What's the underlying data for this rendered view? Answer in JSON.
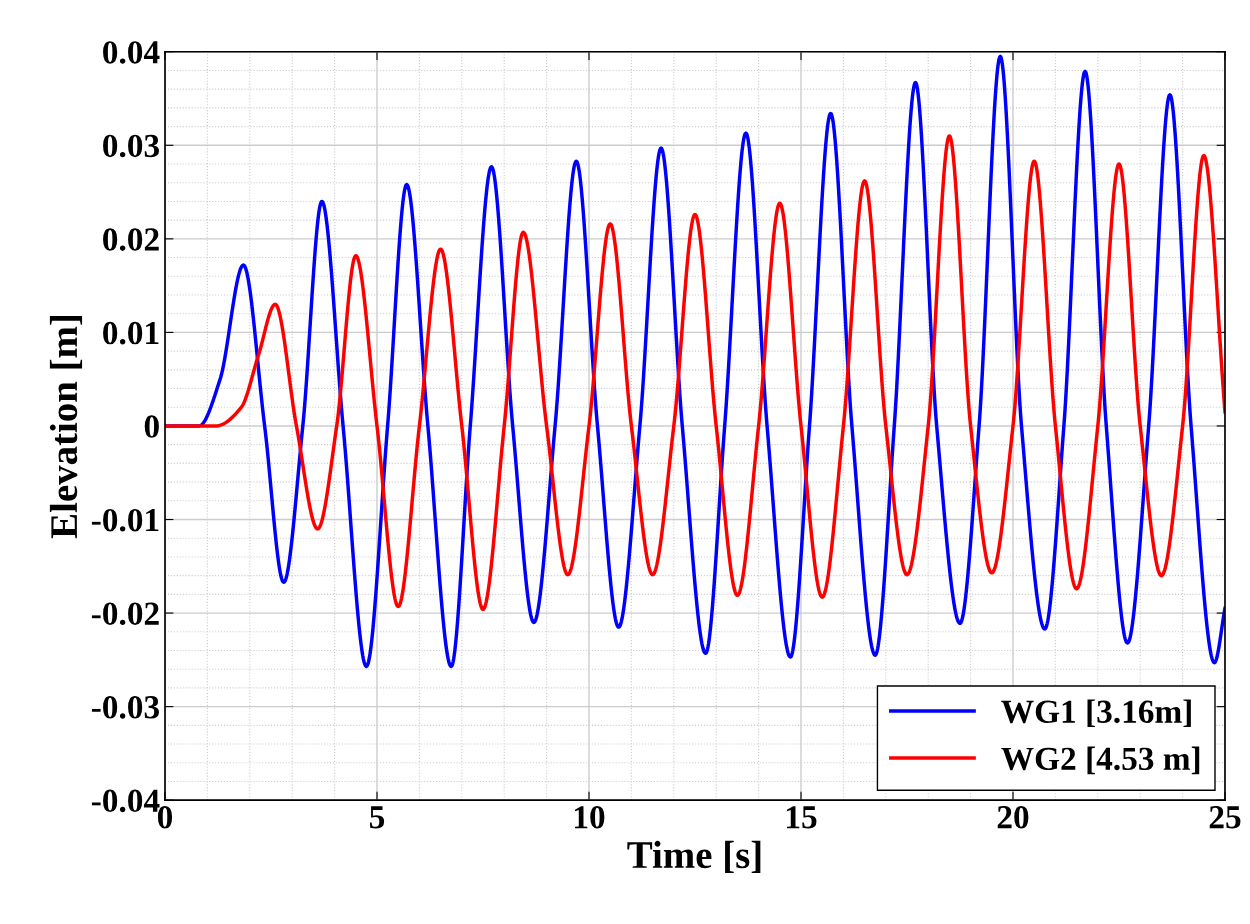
{
  "chart_data": {
    "type": "line",
    "xlabel": "Time [s]",
    "ylabel": "Elevation [m]",
    "xlim": [
      0,
      25
    ],
    "xticks": [
      0,
      5,
      10,
      15,
      20,
      25
    ],
    "ylim": [
      -0.04,
      0.04
    ],
    "yticks": [
      -0.04,
      -0.03,
      -0.02,
      -0.01,
      0,
      0.01,
      0.02,
      0.03,
      0.04
    ],
    "grid": true,
    "legend": "bottom right",
    "line_style": "solid",
    "marker": "none",
    "series": [
      {
        "name": "WG1 [3.16m]",
        "color": "#0000ff",
        "x": [
          0,
          0.8,
          1.3,
          1.85,
          2.35,
          2.8,
          3.25,
          3.7,
          4.2,
          4.75,
          5.25,
          5.7,
          6.2,
          6.75,
          7.2,
          7.7,
          8.2,
          8.7,
          9.2,
          9.7,
          10.2,
          10.7,
          11.2,
          11.7,
          12.2,
          12.75,
          13.2,
          13.7,
          14.2,
          14.75,
          15.2,
          15.7,
          16.2,
          16.75,
          17.2,
          17.7,
          18.2,
          18.75,
          19.2,
          19.7,
          20.2,
          20.75,
          21.2,
          21.7,
          22.2,
          22.7,
          23.2,
          23.7,
          24.2,
          24.75,
          25
        ],
        "values": [
          0,
          0,
          0.005,
          0.0172,
          0,
          -0.0167,
          0,
          0.024,
          0,
          -0.0257,
          0,
          0.0258,
          0,
          -0.0257,
          0,
          0.0277,
          0,
          -0.021,
          0,
          0.0283,
          0,
          -0.0215,
          0,
          0.0297,
          0,
          -0.0243,
          0,
          0.0313,
          0,
          -0.0247,
          0,
          0.0334,
          0,
          -0.0245,
          0,
          0.0367,
          0,
          -0.0211,
          0,
          0.0395,
          0,
          -0.0217,
          0,
          0.0379,
          0,
          -0.0232,
          0,
          0.0354,
          0,
          -0.0253,
          -0.0195
        ]
      },
      {
        "name": "WG2 [4.53 m]",
        "color": "#ff0000",
        "x": [
          0,
          1.2,
          1.8,
          2.2,
          2.6,
          3.1,
          3.6,
          4.05,
          4.5,
          5.0,
          5.5,
          6.0,
          6.5,
          7.0,
          7.5,
          8.0,
          8.45,
          9.0,
          9.5,
          10.0,
          10.5,
          11.0,
          11.5,
          12.0,
          12.5,
          13.0,
          13.5,
          14.0,
          14.5,
          15.0,
          15.5,
          16.0,
          16.5,
          17.0,
          17.5,
          18.0,
          18.5,
          19.0,
          19.5,
          20.0,
          20.5,
          21.0,
          21.5,
          22.0,
          22.5,
          23.0,
          23.5,
          24.0,
          24.5,
          25
        ],
        "values": [
          0,
          0,
          0.002,
          0.0075,
          0.013,
          0,
          -0.011,
          0,
          0.0182,
          0,
          -0.0193,
          0,
          0.0189,
          0,
          -0.0196,
          0,
          0.0207,
          0,
          -0.0159,
          0,
          0.0216,
          0,
          -0.0159,
          0,
          0.0226,
          0,
          -0.0181,
          0,
          0.0238,
          0,
          -0.0183,
          0,
          0.0262,
          0,
          -0.0159,
          0,
          0.031,
          0,
          -0.0157,
          0,
          0.0283,
          0,
          -0.0174,
          0,
          0.028,
          0,
          -0.016,
          0,
          0.0289,
          0.0015
        ]
      }
    ]
  }
}
